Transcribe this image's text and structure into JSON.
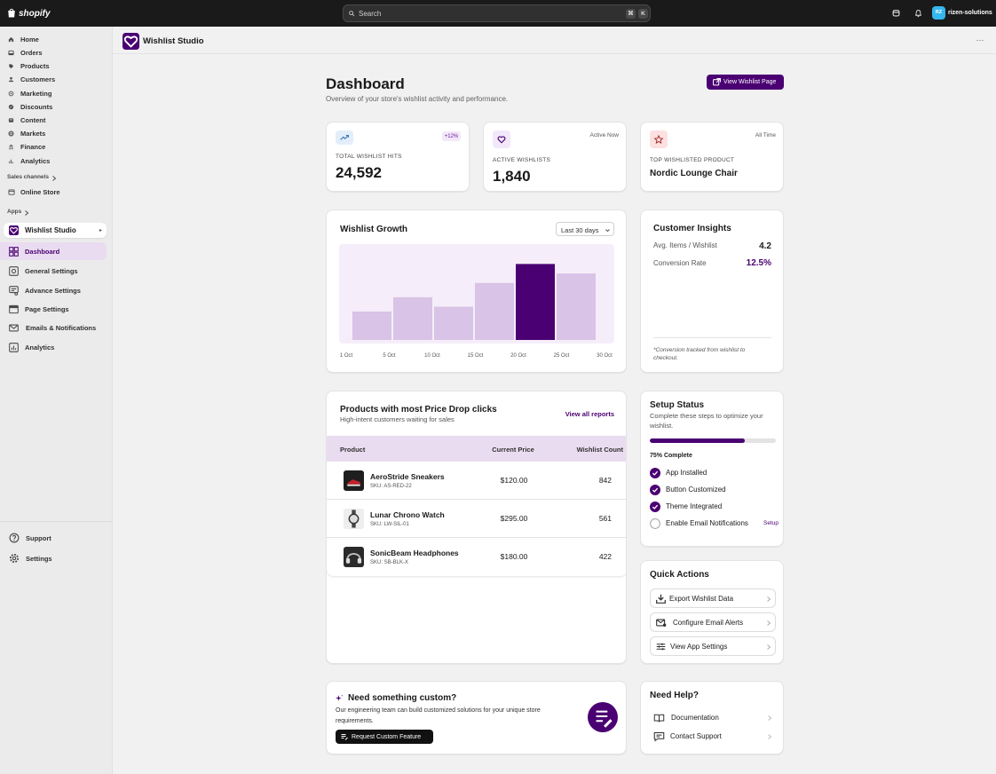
{
  "topbar": {
    "logo": "shopify",
    "search": "Search",
    "shortcut": [
      "⌘",
      "K"
    ],
    "avatar": "RZ",
    "store": "rizen-solutions"
  },
  "sidebar": {
    "nav": [
      "Home",
      "Orders",
      "Products",
      "Customers",
      "Marketing",
      "Discounts",
      "Content",
      "Markets",
      "Finance",
      "Analytics"
    ],
    "sales_channels": "Sales channels",
    "online_store": "Online Store",
    "apps": "Apps",
    "app": "Wishlist Studio",
    "app_nav": [
      "Dashboard",
      "General Settings",
      "Advance Settings",
      "Page Settings",
      "Emails & Notifications",
      "Analytics"
    ],
    "footer": [
      "Support",
      "Settings"
    ]
  },
  "app_header": {
    "title": "Wishlist Studio",
    "menu": "···"
  },
  "page": {
    "title": "Dashboard",
    "subtitle": "Overview of your store's wishlist activity and performance.",
    "action": "View Wishlist Page"
  },
  "stats": [
    {
      "label": "TOTAL WISHLIST HITS",
      "value": "24,592",
      "badge": "+12%"
    },
    {
      "label": "ACTIVE WISHLISTS",
      "value": "1,840",
      "badge": "Active Now"
    },
    {
      "label": "TOP WISHLISTED PRODUCT",
      "value": "Nordic Lounge Chair",
      "badge": "All Time"
    }
  ],
  "chart_data": {
    "type": "bar",
    "title": "Wishlist Growth",
    "range": "Last 30 days",
    "x_labels": [
      "1 Oct",
      "5 Oct",
      "10 Oct",
      "15 Oct",
      "20 Oct",
      "25 Oct",
      "30 Oct"
    ],
    "values": [
      30,
      45,
      35,
      60,
      80,
      70
    ],
    "colors": [
      "#d9c3e6",
      "#d9c3e6",
      "#d9c3e6",
      "#d9c3e6",
      "#4a0072",
      "#d9c3e6"
    ],
    "ylim": [
      0,
      100
    ]
  },
  "insights": {
    "title": "Customer Insights",
    "rows": [
      {
        "label": "Avg. Items / Wishlist",
        "value": "4.2"
      },
      {
        "label": "Conversion Rate",
        "value": "12.5%"
      }
    ],
    "note": "*Conversion tracked from wishlist to checkout."
  },
  "table": {
    "title": "Products with most Price Drop clicks",
    "subtitle": "High-intent customers waiting for sales",
    "link": "View all reports",
    "columns": [
      "Product",
      "Current Price",
      "Wishlist Count"
    ],
    "rows": [
      {
        "name": "AeroStride Sneakers",
        "sku": "SKU: AS-RED-22",
        "price": "$120.00",
        "count": 842
      },
      {
        "name": "Lunar Chrono Watch",
        "sku": "SKU: LW-SIL-01",
        "price": "$295.00",
        "count": 561
      },
      {
        "name": "SonicBeam Headphones",
        "sku": "SKU: SB-BLK-X",
        "price": "$180.00",
        "count": 422
      }
    ]
  },
  "setup": {
    "title": "Setup Status",
    "description": "Complete these steps to optimize your wishlist.",
    "progress": 75,
    "progress_label": "75% Complete",
    "steps": [
      {
        "label": "App Installed",
        "done": true
      },
      {
        "label": "Button Customized",
        "done": true
      },
      {
        "label": "Theme Integrated",
        "done": true
      },
      {
        "label": "Enable Email Notifications",
        "done": false
      }
    ],
    "step_action": "Setup"
  },
  "quick_actions": {
    "title": "Quick Actions",
    "items": [
      "Export Wishlist Data",
      "Configure Email Alerts",
      "View App Settings"
    ]
  },
  "custom": {
    "title": "Need something custom?",
    "description": "Our engineering team can build customized solutions for your unique store requirements.",
    "button": "Request Custom Feature"
  },
  "help": {
    "title": "Need Help?",
    "items": [
      "Documentation",
      "Contact Support"
    ]
  }
}
